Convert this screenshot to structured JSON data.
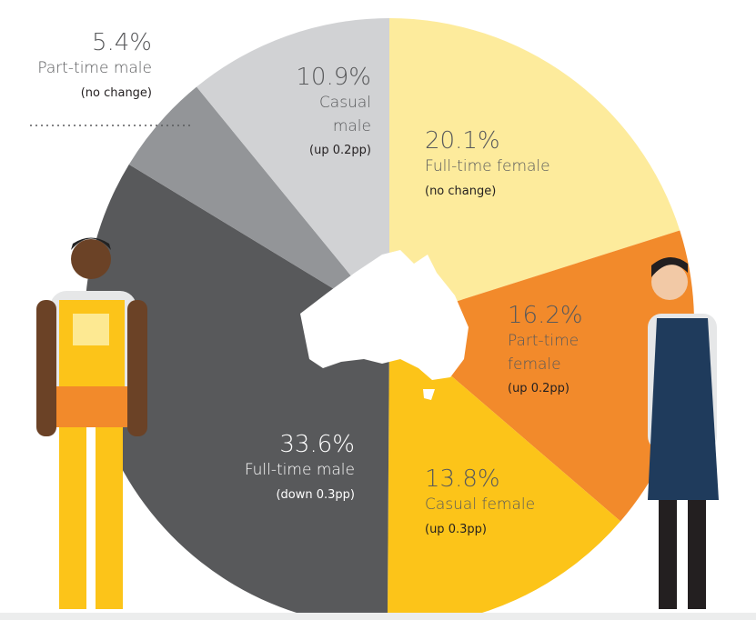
{
  "chart_data": {
    "type": "pie",
    "categories": [
      "Full-time female",
      "Part-time female",
      "Casual female",
      "Full-time male",
      "Part-time male",
      "Casual male"
    ],
    "values": [
      20.1,
      16.2,
      13.8,
      33.6,
      5.4,
      10.9
    ],
    "value_labels": [
      "20.1%",
      "16.2%",
      "13.8%",
      "33.6%",
      "5.4%",
      "10.9%"
    ],
    "annotations": [
      "(no change)",
      "(up 0.2pp)",
      "(up 0.3pp)",
      "(down 0.3pp)",
      "(no change)",
      "(up 0.2pp)"
    ],
    "colors": [
      "#fdeb9c",
      "#f28a2b",
      "#fcc419",
      "#58595b",
      "#939598",
      "#d1d2d4"
    ]
  }
}
